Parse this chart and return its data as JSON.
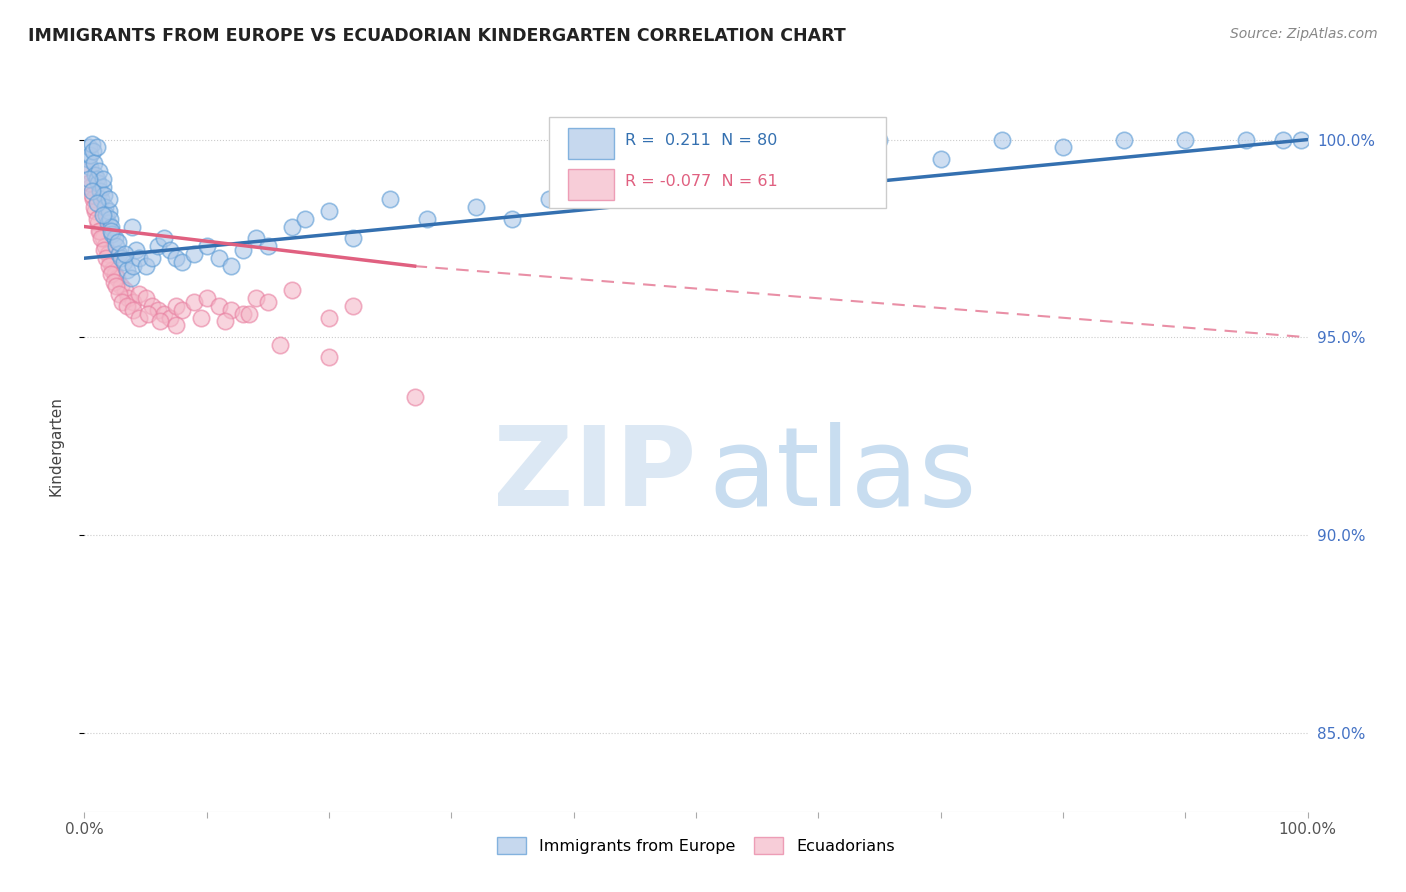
{
  "title": "IMMIGRANTS FROM EUROPE VS ECUADORIAN KINDERGARTEN CORRELATION CHART",
  "source": "Source: ZipAtlas.com",
  "ylabel": "Kindergarten",
  "x_range": [
    0.0,
    100.0
  ],
  "y_range": [
    83.0,
    101.5
  ],
  "legend_europe": "Immigrants from Europe",
  "legend_ecuador": "Ecuadorians",
  "R_europe": 0.211,
  "N_europe": 80,
  "R_ecuador": -0.077,
  "N_ecuador": 61,
  "blue_color": "#aec8e8",
  "pink_color": "#f4b8c8",
  "blue_edge_color": "#5b9bd5",
  "pink_edge_color": "#e87fa0",
  "blue_line_color": "#3470b0",
  "pink_line_color": "#e06080",
  "background_color": "#ffffff",
  "ytick_positions": [
    85.0,
    90.0,
    95.0,
    100.0
  ],
  "ytick_labels": [
    "85.0%",
    "90.0%",
    "95.0%",
    "100.0%"
  ],
  "blue_scatter_x": [
    0.3,
    0.4,
    0.5,
    0.5,
    0.6,
    0.7,
    0.8,
    0.9,
    1.0,
    1.0,
    1.1,
    1.2,
    1.3,
    1.4,
    1.5,
    1.5,
    1.6,
    1.7,
    1.8,
    1.9,
    2.0,
    2.0,
    2.1,
    2.2,
    2.3,
    2.5,
    2.6,
    2.8,
    3.0,
    3.2,
    3.5,
    3.8,
    4.0,
    4.2,
    4.5,
    5.0,
    5.5,
    6.0,
    6.5,
    7.0,
    7.5,
    8.0,
    9.0,
    10.0,
    11.0,
    12.0,
    13.0,
    14.0,
    15.0,
    17.0,
    18.0,
    20.0,
    22.0,
    25.0,
    28.0,
    32.0,
    35.0,
    38.0,
    42.0,
    45.0,
    50.0,
    55.0,
    60.0,
    65.0,
    70.0,
    75.0,
    80.0,
    85.0,
    90.0,
    95.0,
    98.0,
    99.5,
    0.35,
    0.65,
    1.05,
    1.55,
    2.15,
    2.75,
    3.3,
    3.9
  ],
  "blue_scatter_y": [
    99.5,
    99.8,
    99.3,
    99.6,
    99.9,
    99.7,
    99.4,
    99.1,
    99.0,
    99.8,
    98.9,
    99.2,
    98.7,
    98.5,
    98.8,
    99.0,
    98.6,
    98.3,
    98.1,
    97.9,
    98.2,
    98.5,
    98.0,
    97.8,
    97.6,
    97.5,
    97.3,
    97.1,
    97.0,
    96.9,
    96.7,
    96.5,
    96.8,
    97.2,
    97.0,
    96.8,
    97.0,
    97.3,
    97.5,
    97.2,
    97.0,
    96.9,
    97.1,
    97.3,
    97.0,
    96.8,
    97.2,
    97.5,
    97.3,
    97.8,
    98.0,
    98.2,
    97.5,
    98.5,
    98.0,
    98.3,
    98.0,
    98.5,
    99.0,
    99.2,
    99.5,
    99.7,
    99.8,
    100.0,
    99.5,
    100.0,
    99.8,
    100.0,
    100.0,
    100.0,
    100.0,
    100.0,
    99.0,
    98.7,
    98.4,
    98.1,
    97.7,
    97.4,
    97.1,
    97.8
  ],
  "pink_scatter_x": [
    0.3,
    0.5,
    0.7,
    0.9,
    1.1,
    1.3,
    1.5,
    1.7,
    1.9,
    2.1,
    2.3,
    2.5,
    2.7,
    3.0,
    3.3,
    3.6,
    4.0,
    4.5,
    5.0,
    5.5,
    6.0,
    6.5,
    7.0,
    7.5,
    8.0,
    9.0,
    10.0,
    11.0,
    12.0,
    13.0,
    14.0,
    15.0,
    17.0,
    20.0,
    22.0,
    0.4,
    0.6,
    0.8,
    1.0,
    1.2,
    1.4,
    1.6,
    1.8,
    2.0,
    2.2,
    2.4,
    2.6,
    2.8,
    3.1,
    3.5,
    4.0,
    4.5,
    5.2,
    6.2,
    7.5,
    9.5,
    11.5,
    13.5,
    16.0,
    20.0,
    27.0
  ],
  "pink_scatter_y": [
    99.2,
    98.8,
    98.5,
    98.2,
    97.9,
    97.7,
    97.5,
    97.3,
    97.1,
    96.9,
    96.7,
    96.6,
    96.5,
    96.3,
    96.2,
    96.0,
    95.9,
    96.1,
    96.0,
    95.8,
    95.7,
    95.6,
    95.5,
    95.8,
    95.7,
    95.9,
    96.0,
    95.8,
    95.7,
    95.6,
    96.0,
    95.9,
    96.2,
    95.5,
    95.8,
    98.9,
    98.6,
    98.3,
    98.0,
    97.7,
    97.5,
    97.2,
    97.0,
    96.8,
    96.6,
    96.4,
    96.3,
    96.1,
    95.9,
    95.8,
    95.7,
    95.5,
    95.6,
    95.4,
    95.3,
    95.5,
    95.4,
    95.6,
    94.8,
    94.5,
    93.5
  ],
  "blue_line_x0": 0.0,
  "blue_line_y0": 97.0,
  "blue_line_x1": 100.0,
  "blue_line_y1": 100.0,
  "pink_line_x0": 0.0,
  "pink_line_y0": 97.8,
  "pink_line_x1": 27.0,
  "pink_line_y1": 96.8,
  "pink_dash_x0": 27.0,
  "pink_dash_y0": 96.8,
  "pink_dash_x1": 100.0,
  "pink_dash_y1": 95.0
}
